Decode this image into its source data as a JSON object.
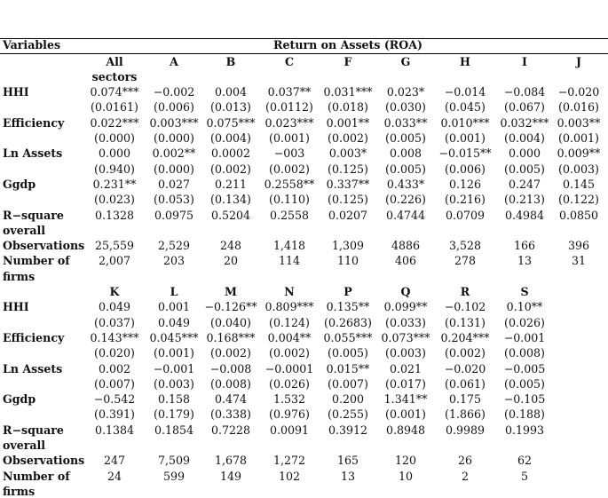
{
  "header": {
    "variables_label": "Variables",
    "dependent_title": "Return on Assets (ROA)"
  },
  "panel1": {
    "columns": [
      [
        "All",
        "sectors"
      ],
      "A",
      "B",
      "C",
      "F",
      "G",
      "H",
      "I",
      "J"
    ],
    "rows": [
      {
        "label": "HHI",
        "coef": [
          "0.074***",
          "−0.002",
          "0.004",
          "0.037**",
          "0.031***",
          "0.023*",
          "−0.014",
          "−0.084",
          "−0.020"
        ],
        "se": [
          "(0.0161)",
          "(0.006)",
          "(0.013)",
          "(0.0112)",
          "(0.018)",
          "(0.030)",
          "(0.045)",
          "(0.067)",
          "(0.016)"
        ]
      },
      {
        "label": "Efficiency",
        "coef": [
          "0.022***",
          "0.003***",
          "0.075***",
          "0.023***",
          "0.001**",
          "0.033**",
          "0.010***",
          "0.032***",
          "0.003**"
        ],
        "se": [
          "(0.000)",
          "(0.000)",
          "(0.004)",
          "(0.001)",
          "(0.002)",
          "(0.005)",
          "(0.001)",
          "(0.004)",
          "(0.001)"
        ]
      },
      {
        "label": "Ln Assets",
        "coef": [
          "0.000",
          "0.002**",
          "0.0002",
          "−003",
          "0.003*",
          "0.008",
          "−0.015**",
          "0.000",
          "0.009**"
        ],
        "se": [
          "(0.940)",
          "(0.000)",
          "(0.002)",
          "(0.002)",
          "(0.125)",
          "(0.005)",
          "(0.006)",
          "(0.005)",
          "(0.003)"
        ]
      },
      {
        "label": "Ggdp",
        "coef": [
          "0.231**",
          "0.027",
          "0.211",
          "0.2558**",
          "0.337**",
          "0.433*",
          "0.126",
          "0.247",
          "0.145"
        ],
        "se": [
          "(0.023)",
          "(0.053)",
          "(0.134)",
          "(0.110)",
          "(0.125)",
          "(0.226)",
          "(0.216)",
          "(0.213)",
          "(0.122)"
        ]
      },
      {
        "label": [
          "R−square",
          "overall"
        ],
        "coef": [
          "0.1328",
          "0.0975",
          "0.5204",
          "0.2558",
          "0.0207",
          "0.4744",
          "0.0709",
          "0.4984",
          "0.0850"
        ]
      },
      {
        "label": "Observations",
        "coef": [
          "25,559",
          "2,529",
          "248",
          "1,418",
          "1,309",
          "4886",
          "3,528",
          "166",
          "396"
        ]
      },
      {
        "label": [
          "Number of",
          "firms"
        ],
        "coef": [
          "2,007",
          "203",
          "20",
          "114",
          "110",
          "406",
          "278",
          "13",
          "31"
        ]
      }
    ]
  },
  "panel2": {
    "columns": [
      "K",
      "L",
      "M",
      "N",
      "P",
      "Q",
      "R",
      "S"
    ],
    "rows": [
      {
        "label": "HHI",
        "coef": [
          "0.049",
          "0.001",
          "−0.126**",
          "0.809***",
          "0.135**",
          "0.099**",
          "−0.102",
          "0.10**"
        ],
        "se": [
          "(0.037)",
          "0.049",
          "(0.040)",
          "(0.124)",
          "(0.2683)",
          "(0.033)",
          "(0.131)",
          "(0.026)"
        ]
      },
      {
        "label": "Efficiency",
        "coef": [
          "0.143***",
          "0.045***",
          "0.168***",
          "0.004**",
          "0.055***",
          "0.073***",
          "0.204***",
          "−0.001"
        ],
        "se": [
          "(0.020)",
          "(0.001)",
          "(0.002)",
          "(0.002)",
          "(0.005)",
          "(0.003)",
          "(0.002)",
          "(0.008)"
        ]
      },
      {
        "label": "Ln Assets",
        "coef": [
          "0.002",
          "−0.001",
          "−0.008",
          "−0.0001",
          "0.015**",
          "0.021",
          "−0.020",
          "−0.005"
        ],
        "se": [
          "(0.007)",
          "(0.003)",
          "(0.008)",
          "(0.026)",
          "(0.007)",
          "(0.017)",
          "(0.061)",
          "(0.005)"
        ]
      },
      {
        "label": "Ggdp",
        "coef": [
          "−0.542",
          "0.158",
          "0.474",
          "1.532",
          "0.200",
          "1.341**",
          "0.175",
          "−0.105"
        ],
        "se": [
          "(0.391)",
          "(0.179)",
          "(0.338)",
          "(0.976)",
          "(0.255)",
          "(0.001)",
          "(1.866)",
          "(0.188)"
        ]
      },
      {
        "label": [
          "R−square",
          "overall"
        ],
        "coef": [
          "0.1384",
          "0.1854",
          "0.7228",
          "0.0091",
          "0.3912",
          "0.8948",
          "0.9989",
          "0.1993"
        ]
      },
      {
        "label": "Observations",
        "coef": [
          "247",
          "7,509",
          "1,678",
          "1,272",
          "165",
          "120",
          "26",
          "62"
        ]
      },
      {
        "label": [
          "Number of",
          "firms"
        ],
        "coef": [
          "24",
          "599",
          "149",
          "102",
          "13",
          "10",
          "2",
          "5"
        ]
      }
    ]
  }
}
